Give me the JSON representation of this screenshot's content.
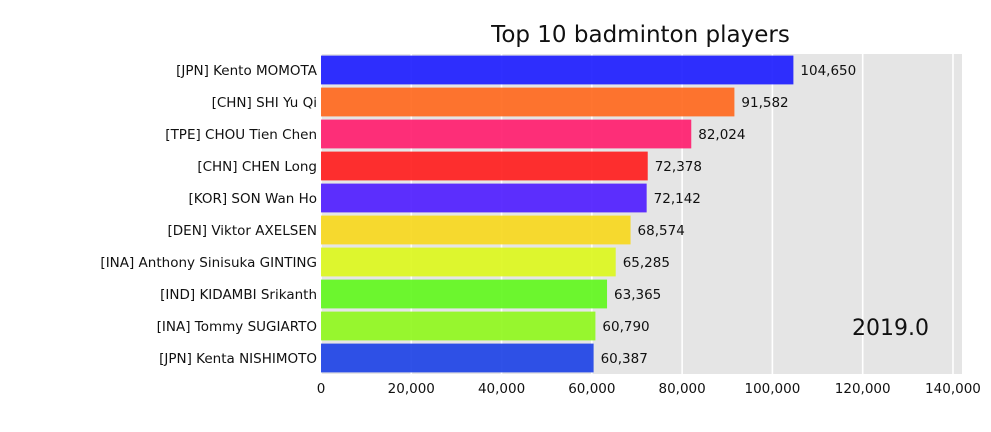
{
  "chart_data": {
    "type": "bar",
    "orientation": "horizontal",
    "title": "Top 10 badminton players",
    "period_label": "2019.0",
    "categories": [
      "[JPN] Kento MOMOTA",
      "[CHN] SHI Yu Qi",
      "[TPE] CHOU Tien Chen",
      "[CHN] CHEN Long",
      "[KOR] SON Wan Ho",
      "[DEN] Viktor AXELSEN",
      "[INA] Anthony Sinisuka GINTING",
      "[IND] KIDAMBI Srikanth",
      "[INA] Tommy SUGIARTO",
      "[JPN] Kenta NISHIMOTO"
    ],
    "values": [
      104650,
      91582,
      82024,
      72378,
      72142,
      68574,
      65285,
      63365,
      60790,
      60387
    ],
    "value_labels": [
      "104,650",
      "91,582",
      "82,024",
      "72,378",
      "72,142",
      "68,574",
      "65,285",
      "63,365",
      "60,790",
      "60,387"
    ],
    "colors": [
      "#1a1aff",
      "#ff6619",
      "#ff1a6b",
      "#ff1a1a",
      "#4d1aff",
      "#f7d71a",
      "#dbf71a",
      "#5ef71a",
      "#8ef71a",
      "#1a3fe6"
    ],
    "xlim": [
      0,
      142000
    ],
    "xticks": [
      0,
      20000,
      40000,
      60000,
      80000,
      100000,
      120000,
      140000
    ],
    "xtick_labels": [
      "0",
      "20,000",
      "40,000",
      "60,000",
      "80,000",
      "100,000",
      "120,000",
      "140,000"
    ],
    "grid": true,
    "background": "#e5e5e5"
  }
}
